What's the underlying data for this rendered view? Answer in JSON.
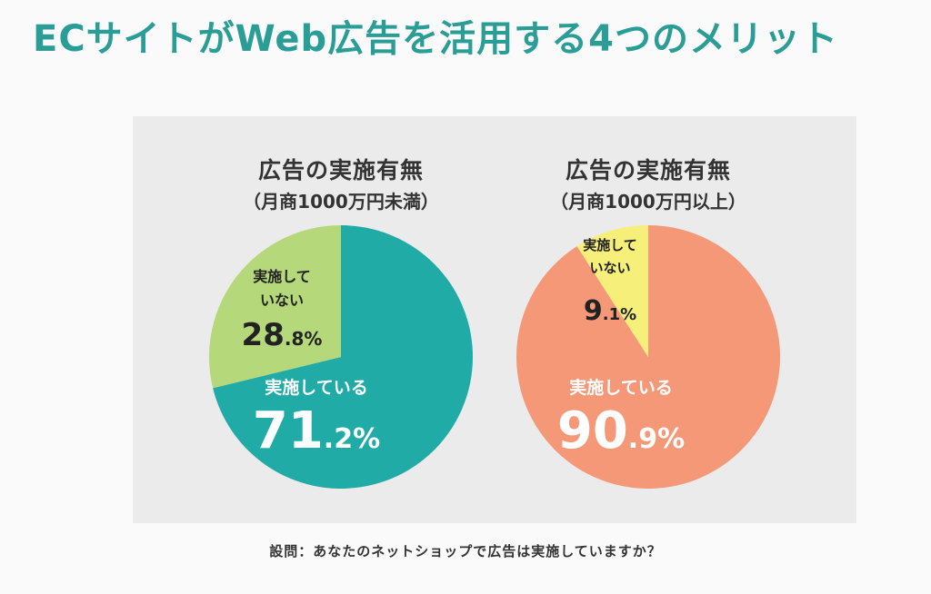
{
  "headline": "ECサイトがWeb広告を活用する4つのメリット",
  "caption": "設問：あなたのネットショップで広告は実施していますか？",
  "chart_data": [
    {
      "type": "pie",
      "title": "広告の実施有無",
      "subtitle": "（月商1000万円未満）",
      "slices": [
        {
          "label": "実施している",
          "value": 71.2,
          "int": "71",
          "dec": ".2%",
          "color": "#21aba7",
          "text_color": "#ffffff"
        },
        {
          "label": "実施していない",
          "label_lines": [
            "実施して",
            "いない"
          ],
          "value": 28.8,
          "int": "28",
          "dec": ".8%",
          "color": "#b4d87a",
          "text_color": "#222222"
        }
      ]
    },
    {
      "type": "pie",
      "title": "広告の実施有無",
      "subtitle": "（月商1000万円以上）",
      "slices": [
        {
          "label": "実施している",
          "value": 90.9,
          "int": "90",
          "dec": ".9%",
          "color": "#f59878",
          "text_color": "#ffffff"
        },
        {
          "label": "実施していない",
          "label_lines": [
            "実施して",
            "いない"
          ],
          "value": 9.1,
          "int": "9",
          "dec": ".1%",
          "color": "#f6f07a",
          "text_color": "#222222"
        }
      ]
    }
  ]
}
